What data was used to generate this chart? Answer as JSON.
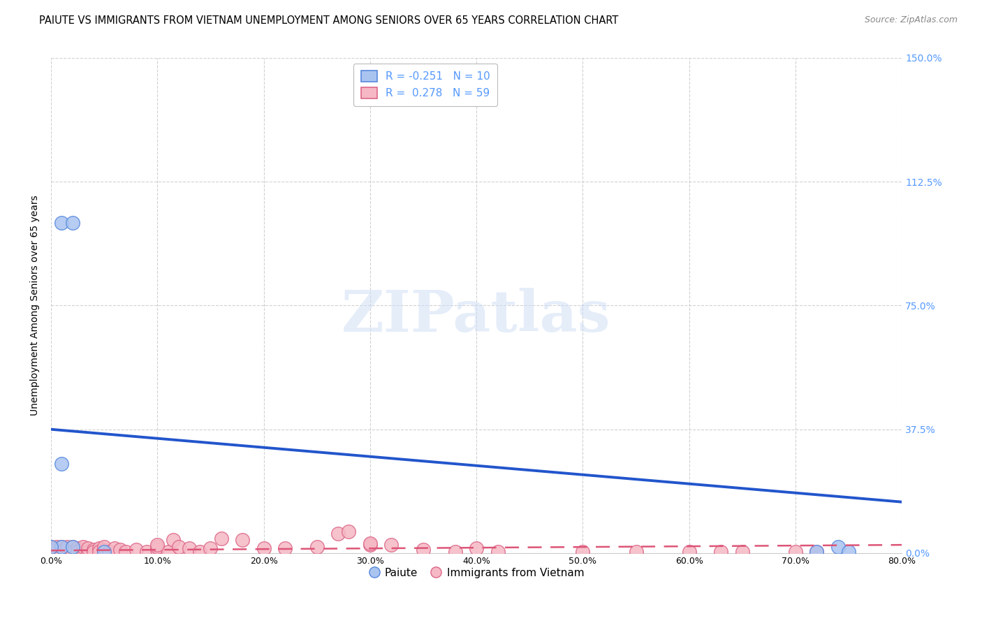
{
  "title": "PAIUTE VS IMMIGRANTS FROM VIETNAM UNEMPLOYMENT AMONG SENIORS OVER 65 YEARS CORRELATION CHART",
  "source": "Source: ZipAtlas.com",
  "ylabel": "Unemployment Among Seniors over 65 years",
  "xlim": [
    0.0,
    0.8
  ],
  "ylim": [
    0.0,
    1.5
  ],
  "paiute_color": "#aac4f0",
  "paiute_edge_color": "#5588dd",
  "vietnam_color": "#f5b8c4",
  "vietnam_edge_color": "#dd6688",
  "trendline_paiute_color": "#2255cc",
  "trendline_vietnam_color": "#dd5577",
  "legend_r_paiute": "-0.251",
  "legend_n_paiute": "10",
  "legend_r_vietnam": "0.278",
  "legend_n_vietnam": "59",
  "paiute_x": [
    0.01,
    0.02,
    0.01,
    0.02,
    0.0,
    0.01,
    0.05,
    0.72,
    0.74,
    0.75
  ],
  "paiute_y": [
    1.0,
    1.0,
    0.02,
    0.02,
    0.02,
    0.27,
    0.005,
    0.005,
    0.02,
    0.005
  ],
  "vietnam_x": [
    0.0,
    0.005,
    0.005,
    0.01,
    0.01,
    0.01,
    0.015,
    0.015,
    0.02,
    0.02,
    0.02,
    0.025,
    0.025,
    0.03,
    0.03,
    0.035,
    0.035,
    0.04,
    0.04,
    0.045,
    0.045,
    0.05,
    0.05,
    0.055,
    0.06,
    0.065,
    0.07,
    0.08,
    0.09,
    0.1,
    0.1,
    0.11,
    0.115,
    0.12,
    0.13,
    0.14,
    0.15,
    0.16,
    0.18,
    0.2,
    0.22,
    0.25,
    0.27,
    0.3,
    0.32,
    0.35,
    0.38,
    0.4,
    0.42,
    0.5,
    0.55,
    0.6,
    0.63,
    0.65,
    0.7,
    0.72,
    0.1,
    0.28,
    0.3
  ],
  "vietnam_y": [
    0.02,
    0.01,
    0.02,
    0.01,
    0.02,
    0.005,
    0.01,
    0.02,
    0.01,
    0.02,
    0.005,
    0.015,
    0.005,
    0.01,
    0.02,
    0.005,
    0.015,
    0.01,
    0.005,
    0.015,
    0.005,
    0.01,
    0.02,
    0.005,
    0.015,
    0.01,
    0.005,
    0.01,
    0.005,
    0.01,
    0.02,
    0.005,
    0.04,
    0.02,
    0.015,
    0.005,
    0.015,
    0.045,
    0.04,
    0.015,
    0.015,
    0.02,
    0.06,
    0.025,
    0.025,
    0.01,
    0.005,
    0.015,
    0.005,
    0.005,
    0.005,
    0.005,
    0.005,
    0.005,
    0.005,
    0.005,
    0.025,
    0.065,
    0.03
  ],
  "paiute_trend_x0": 0.0,
  "paiute_trend_y0": 0.375,
  "paiute_trend_x1": 0.8,
  "paiute_trend_y1": 0.155,
  "vietnam_trend_x0": 0.0,
  "vietnam_trend_y0": 0.008,
  "vietnam_trend_x1": 0.8,
  "vietnam_trend_y1": 0.025,
  "watermark_text": "ZIPatlas",
  "background_color": "#ffffff",
  "grid_color": "#cccccc",
  "title_fontsize": 10.5,
  "axis_label_fontsize": 10,
  "tick_fontsize": 9,
  "legend_fontsize": 11,
  "right_tick_color": "#5599ff"
}
